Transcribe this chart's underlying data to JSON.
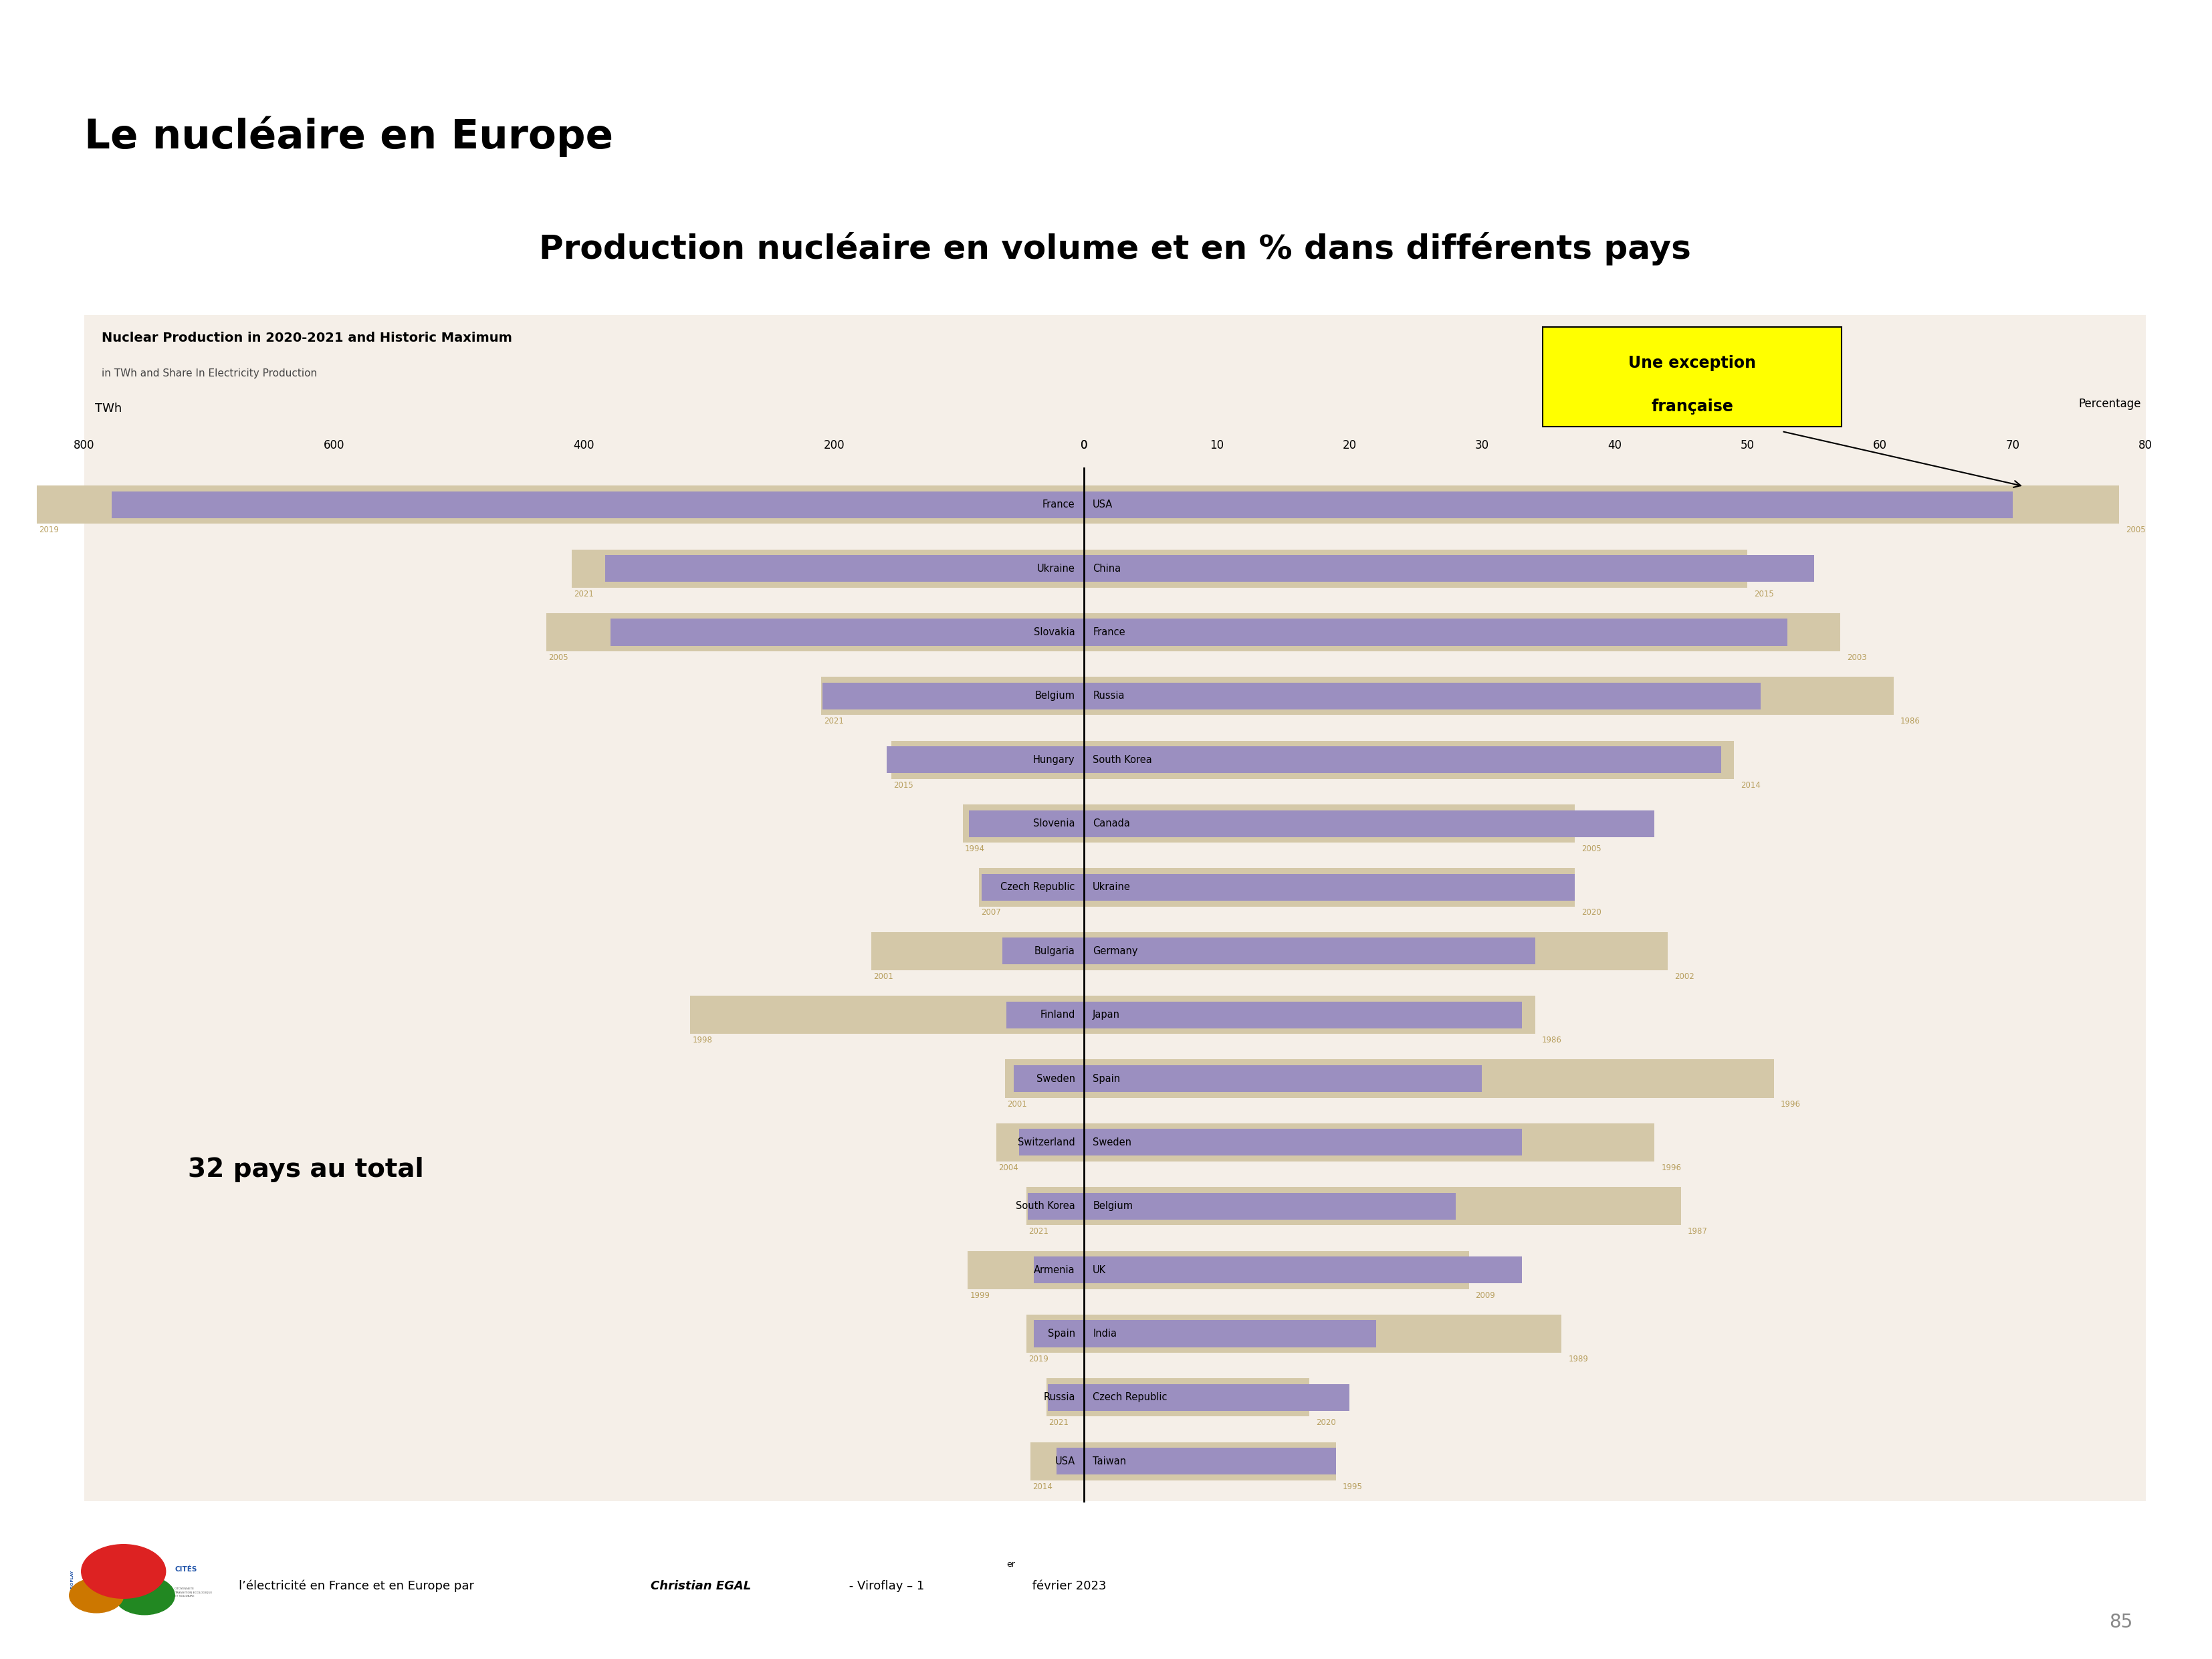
{
  "title": "Le nucléaire en Europe",
  "subtitle": "Production nucléaire en volume et en % dans différents pays",
  "chart_title": "Nuclear Production in 2020-2021 and Historic Maximum",
  "chart_subtitle": "in TWh and Share In Electricity Production",
  "left_axis_label": "TWh",
  "right_axis_label": "Percentage",
  "annotation_text": "Une exception\nfrançaise",
  "note_text": "32 pays au total",
  "footer_pre": "l’électricité en France et en Europe par ",
  "footer_bold": "Christian EGAL",
  "footer_post": " - Viroflay – 1",
  "footer_sup": "er",
  "footer_end": " février 2023",
  "page_number": "85",
  "bg_color": "#f5efe8",
  "bar_purple": "#9b8fc0",
  "bar_beige": "#d4c8a8",
  "twh_max": 800,
  "pct_max": 80,
  "left_countries": [
    "USA",
    "China",
    "France",
    "Russia",
    "South Korea",
    "Canada",
    "Ukraine",
    "Germany",
    "Japan",
    "Spain",
    "Sweden",
    "Belgium",
    "UK",
    "India",
    "Czech Republic",
    "Taiwan"
  ],
  "left_current_twh": [
    778,
    383,
    379,
    209,
    158,
    92,
    82,
    65,
    62,
    56,
    52,
    45,
    40,
    40,
    29,
    22
  ],
  "left_max_twh": [
    838,
    410,
    430,
    210,
    154,
    97,
    84,
    170,
    315,
    63,
    70,
    46,
    93,
    46,
    30,
    43
  ],
  "left_max_years": [
    "2019",
    "2021",
    "2005",
    "2021",
    "2015",
    "1994",
    "2007",
    "2001",
    "1998",
    "2001",
    "2004",
    "2021",
    "1999",
    "2019",
    "2021",
    "2014"
  ],
  "right_countries": [
    "France",
    "Ukraine",
    "Slovakia",
    "Belgium",
    "Hungary",
    "Slovenia",
    "Czech Republic",
    "Bulgaria",
    "Finland",
    "Sweden",
    "Switzerland",
    "South Korea",
    "Armenia",
    "Spain",
    "Russia",
    "USA"
  ],
  "right_current_pct": [
    70,
    55,
    53,
    51,
    48,
    43,
    37,
    34,
    33,
    30,
    33,
    28,
    33,
    22,
    20,
    19
  ],
  "right_max_pct": [
    78,
    50,
    57,
    61,
    49,
    37,
    37,
    44,
    34,
    52,
    43,
    45,
    29,
    36,
    17,
    19
  ],
  "right_max_years": [
    "2005",
    "2015",
    "2003",
    "1986",
    "2014",
    "2005",
    "2020",
    "2002",
    "1986",
    "1996",
    "1996",
    "1987",
    "2009",
    "1989",
    "2020",
    "1995"
  ]
}
